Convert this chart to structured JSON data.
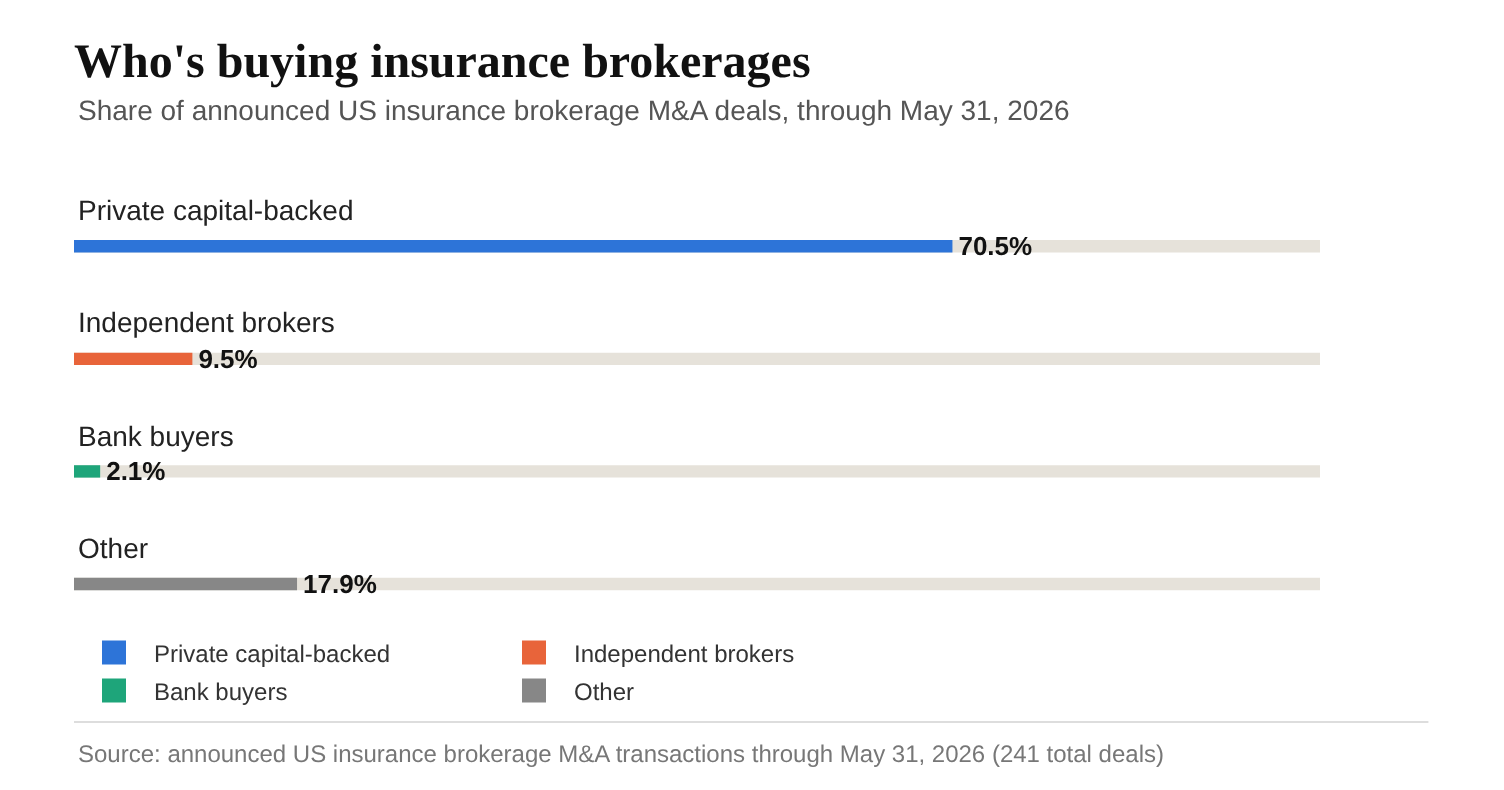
{
  "chart_data": {
    "type": "bar",
    "orientation": "horizontal",
    "title": "Who's buying insurance brokerages",
    "subtitle": "Share of announced US insurance brokerage M&A deals, through May 31, 2026",
    "categories": [
      "Private capital-backed",
      "Independent brokers",
      "Bank buyers",
      "Other"
    ],
    "series": [
      {
        "name": "Private capital-backed",
        "color": "#2d74d8",
        "values": [
          70.5,
          null,
          null,
          null
        ],
        "value_labels": [
          "70.5%",
          null,
          null,
          null
        ]
      },
      {
        "name": "Independent brokers",
        "color": "#e8643a",
        "values": [
          null,
          9.5,
          null,
          null
        ],
        "value_labels": [
          null,
          "9.5%",
          null,
          null
        ]
      },
      {
        "name": "Bank buyers",
        "color": "#1ea57a",
        "values": [
          null,
          null,
          2.1,
          null
        ],
        "value_labels": [
          null,
          null,
          "2.1%",
          null
        ]
      },
      {
        "name": "Other",
        "color": "#878787",
        "values": [
          null,
          null,
          null,
          17.9
        ],
        "value_labels": [
          null,
          null,
          null,
          "17.9%"
        ]
      }
    ],
    "xlim": [
      0,
      100
    ],
    "tick_labels": false,
    "grid": false,
    "legend": "bottom",
    "annotations": [
      "Source: announced US insurance brokerage M&A transactions through May 31, 2026 (241 total deals)"
    ]
  }
}
